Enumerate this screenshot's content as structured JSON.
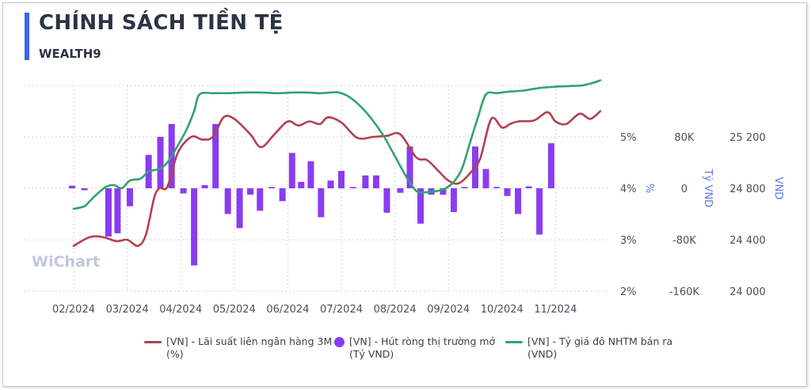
{
  "header": {
    "title": "CHÍNH SÁCH TIỀN TỆ",
    "subtitle": "WEALTH9"
  },
  "watermark": "WiChart",
  "colors": {
    "accent": "#3d63f0",
    "rate_line": "#b3404f",
    "net_injection_bar": "#8a3cf0",
    "fx_line": "#2fa36f",
    "axis_title": "#5b79e6"
  },
  "chart_data": {
    "type": "combo",
    "x_tick_labels": [
      "02/2024",
      "03/2024",
      "04/2024",
      "05/2024",
      "06/2024",
      "07/2024",
      "08/2024",
      "09/2024",
      "10/2024",
      "11/2024"
    ],
    "axes": {
      "rate": {
        "title": "%",
        "ylim": [
          2,
          6
        ],
        "ticks": [
          2,
          3,
          4,
          5
        ],
        "tick_labels": [
          "2%",
          "3%",
          "4%",
          "5%"
        ]
      },
      "net_injection": {
        "title": "Tỷ VND",
        "ylim": [
          -160000,
          160000
        ],
        "ticks": [
          -160000,
          -80000,
          0,
          80000
        ],
        "tick_labels": [
          "-160K",
          "-80K",
          "0",
          "80K"
        ]
      },
      "fx": {
        "title": "VND",
        "ylim": [
          24000,
          25600
        ],
        "ticks": [
          24000,
          24400,
          24800,
          25200
        ],
        "tick_labels": [
          "24 000",
          "24 400",
          "24 800",
          "25 200"
        ]
      }
    },
    "grid": true,
    "legend_position": "bottom",
    "series": [
      {
        "name": "[VN] - Lãi suất liên ngân hàng 3M\n(%)",
        "kind": "line",
        "axis": "rate",
        "color": "#b3404f",
        "x": [
          0.0,
          0.3,
          0.55,
          0.8,
          1.0,
          1.2,
          1.35,
          1.5,
          1.6,
          1.75,
          1.95,
          2.2,
          2.4,
          2.6,
          2.8,
          3.0,
          3.3,
          3.5,
          3.75,
          4.0,
          4.2,
          4.4,
          4.6,
          4.75,
          5.0,
          5.3,
          5.6,
          5.85,
          6.1,
          6.4,
          6.6,
          6.8,
          7.0,
          7.2,
          7.45,
          7.6,
          7.8,
          8.0,
          8.15,
          8.3,
          8.6,
          8.85,
          9.0,
          9.2,
          9.45,
          9.65,
          9.85
        ],
        "values": [
          2.88,
          3.05,
          3.05,
          2.97,
          3.0,
          2.88,
          3.1,
          3.8,
          4.0,
          4.03,
          4.7,
          5.0,
          4.95,
          5.0,
          5.38,
          5.35,
          5.05,
          4.8,
          5.05,
          5.3,
          5.22,
          5.3,
          5.25,
          5.38,
          5.28,
          4.98,
          5.0,
          5.02,
          5.05,
          4.6,
          4.55,
          4.35,
          4.15,
          4.1,
          4.35,
          4.6,
          5.35,
          5.18,
          5.25,
          5.3,
          5.32,
          5.48,
          5.3,
          5.25,
          5.45,
          5.35,
          5.5
        ]
      },
      {
        "name": "[VN] - Hút ròng thị trường mở\n(Tỷ VND)",
        "kind": "bar",
        "axis": "net_injection",
        "color": "#8a3cf0",
        "x": [
          -0.03,
          0.2,
          0.65,
          0.82,
          1.05,
          1.4,
          1.62,
          1.83,
          2.05,
          2.25,
          2.45,
          2.65,
          2.88,
          3.1,
          3.3,
          3.48,
          3.7,
          3.9,
          4.08,
          4.25,
          4.43,
          4.62,
          4.8,
          5.0,
          5.22,
          5.45,
          5.65,
          5.85,
          6.1,
          6.28,
          6.48,
          6.68,
          6.9,
          7.1,
          7.3,
          7.5,
          7.7,
          7.9,
          8.1,
          8.3,
          8.5,
          8.7,
          8.92,
          9.15,
          9.35,
          9.55
        ],
        "values": [
          4000,
          -3000,
          -75000,
          -70000,
          -28000,
          52000,
          80000,
          100000,
          -8000,
          -120000,
          5000,
          100000,
          -40000,
          -62000,
          -10000,
          -35000,
          2000,
          -20000,
          55000,
          10000,
          42000,
          -45000,
          12000,
          27000,
          2000,
          20000,
          20000,
          -38000,
          -7000,
          65000,
          -55000,
          -10000,
          -10000,
          -37000,
          2000,
          65000,
          30000,
          2000,
          -12000,
          -40000,
          3000,
          -72000,
          70000,
          0,
          0,
          0
        ]
      },
      {
        "name": "[VN] - Tỷ giá đô NHTM bán ra\n(VND)",
        "kind": "line",
        "axis": "fx",
        "color": "#2fa36f",
        "x": [
          0.0,
          0.2,
          0.3,
          0.45,
          0.6,
          0.75,
          0.9,
          1.05,
          1.25,
          1.4,
          1.6,
          1.75,
          1.9,
          2.1,
          2.25,
          2.35,
          2.6,
          2.9,
          3.2,
          3.5,
          3.8,
          4.1,
          4.35,
          4.6,
          4.8,
          4.95,
          5.15,
          5.4,
          5.6,
          5.8,
          6.0,
          6.2,
          6.4,
          6.6,
          6.8,
          6.95,
          7.1,
          7.25,
          7.4,
          7.55,
          7.7,
          7.9,
          8.1,
          8.4,
          8.7,
          9.0,
          9.25,
          9.5,
          9.7,
          9.85
        ],
        "values": [
          24640,
          24660,
          24700,
          24760,
          24810,
          24825,
          24800,
          24860,
          24875,
          24930,
          24950,
          25000,
          25100,
          25250,
          25400,
          25530,
          25540,
          25540,
          25545,
          25545,
          25540,
          25545,
          25545,
          25540,
          25545,
          25545,
          25510,
          25420,
          25320,
          25200,
          25050,
          24900,
          24780,
          24770,
          24780,
          24800,
          24850,
          24950,
          25150,
          25350,
          25530,
          25540,
          25550,
          25560,
          25580,
          25590,
          25595,
          25600,
          25620,
          25640
        ]
      }
    ]
  }
}
